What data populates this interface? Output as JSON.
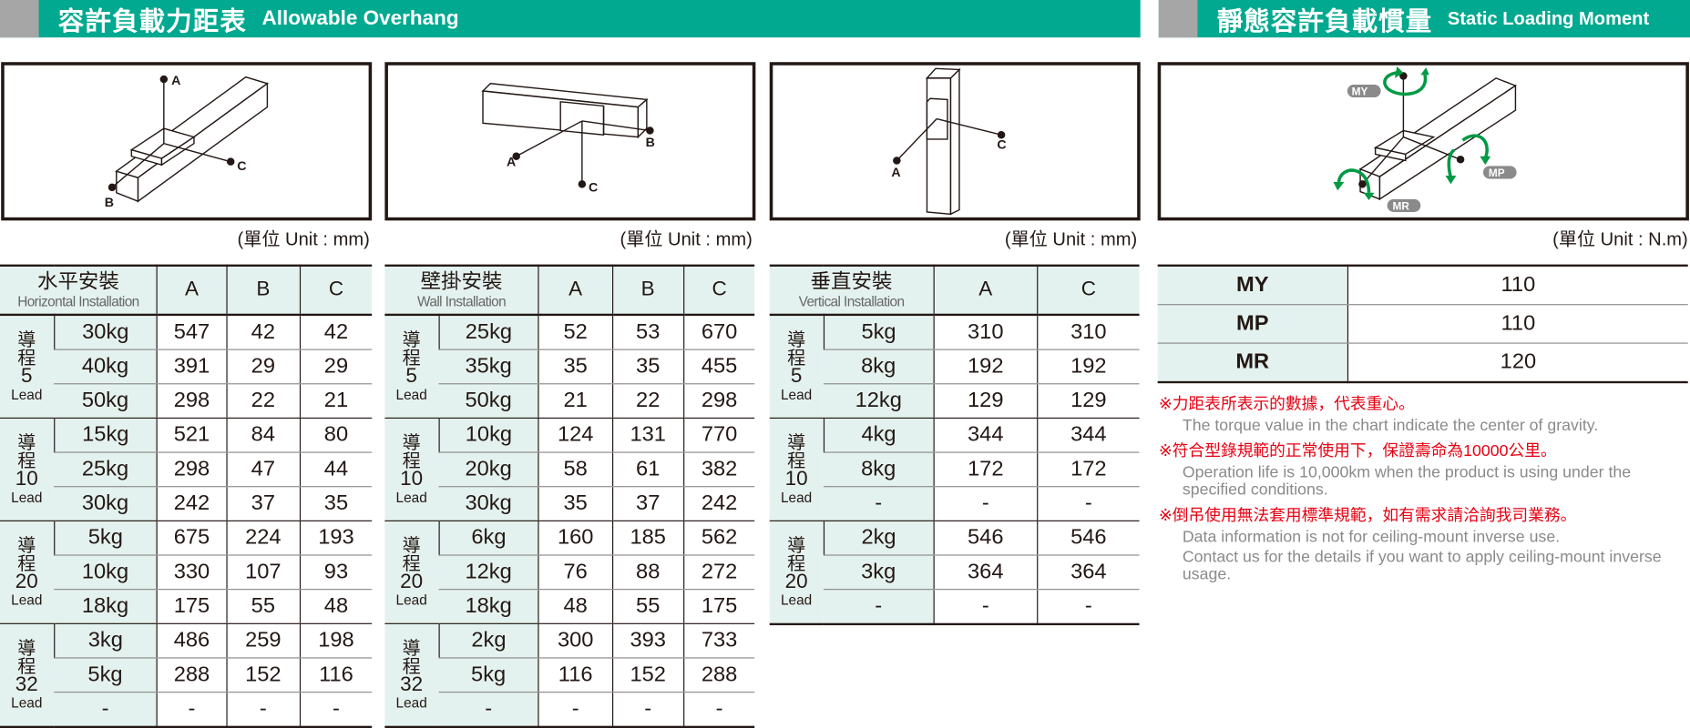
{
  "headers": {
    "overhang": {
      "cn": "容許負載力距表",
      "en": "Allowable Overhang"
    },
    "moment": {
      "cn": "靜態容許負載慣量",
      "en": "Static Loading Moment"
    }
  },
  "diagram_labels": {
    "a": "A",
    "b": "B",
    "c": "C",
    "my": "MY",
    "mp": "MP",
    "mr": "MR"
  },
  "units": {
    "mm": "(單位 Unit : mm)",
    "nm": "(單位 Unit : N.m)"
  },
  "colors": {
    "header": "#00a98f",
    "header_block": "#a6a6a6",
    "cell_tint": "#e4f2ef",
    "arrow": "#009944",
    "note_red": "#e60012",
    "note_gray": "#8a8a8a"
  },
  "tables": [
    {
      "id": "horizontal",
      "title_cn": "水平安裝",
      "title_en": "Horizontal Installation",
      "columns": [
        "A",
        "B",
        "C"
      ],
      "groups": [
        {
          "label": "導",
          "label2": "程",
          "lead": "5",
          "lead_en": "Lead",
          "rows": [
            [
              "30kg",
              "547",
              "42",
              "42"
            ],
            [
              "40kg",
              "391",
              "29",
              "29"
            ],
            [
              "50kg",
              "298",
              "22",
              "21"
            ]
          ]
        },
        {
          "label": "導",
          "label2": "程",
          "lead": "10",
          "lead_en": "Lead",
          "rows": [
            [
              "15kg",
              "521",
              "84",
              "80"
            ],
            [
              "25kg",
              "298",
              "47",
              "44"
            ],
            [
              "30kg",
              "242",
              "37",
              "35"
            ]
          ]
        },
        {
          "label": "導",
          "label2": "程",
          "lead": "20",
          "lead_en": "Lead",
          "rows": [
            [
              "5kg",
              "675",
              "224",
              "193"
            ],
            [
              "10kg",
              "330",
              "107",
              "93"
            ],
            [
              "18kg",
              "175",
              "55",
              "48"
            ]
          ]
        },
        {
          "label": "導",
          "label2": "程",
          "lead": "32",
          "lead_en": "Lead",
          "rows": [
            [
              "3kg",
              "486",
              "259",
              "198"
            ],
            [
              "5kg",
              "288",
              "152",
              "116"
            ],
            [
              "-",
              "-",
              "-",
              "-"
            ]
          ]
        }
      ]
    },
    {
      "id": "wall",
      "title_cn": "壁掛安裝",
      "title_en": "Wall Installation",
      "columns": [
        "A",
        "B",
        "C"
      ],
      "groups": [
        {
          "label": "導",
          "label2": "程",
          "lead": "5",
          "lead_en": "Lead",
          "rows": [
            [
              "25kg",
              "52",
              "53",
              "670"
            ],
            [
              "35kg",
              "35",
              "35",
              "455"
            ],
            [
              "50kg",
              "21",
              "22",
              "298"
            ]
          ]
        },
        {
          "label": "導",
          "label2": "程",
          "lead": "10",
          "lead_en": "Lead",
          "rows": [
            [
              "10kg",
              "124",
              "131",
              "770"
            ],
            [
              "20kg",
              "58",
              "61",
              "382"
            ],
            [
              "30kg",
              "35",
              "37",
              "242"
            ]
          ]
        },
        {
          "label": "導",
          "label2": "程",
          "lead": "20",
          "lead_en": "Lead",
          "rows": [
            [
              "6kg",
              "160",
              "185",
              "562"
            ],
            [
              "12kg",
              "76",
              "88",
              "272"
            ],
            [
              "18kg",
              "48",
              "55",
              "175"
            ]
          ]
        },
        {
          "label": "導",
          "label2": "程",
          "lead": "32",
          "lead_en": "Lead",
          "rows": [
            [
              "2kg",
              "300",
              "393",
              "733"
            ],
            [
              "5kg",
              "116",
              "152",
              "288"
            ],
            [
              "-",
              "-",
              "-",
              "-"
            ]
          ]
        }
      ]
    },
    {
      "id": "vertical",
      "title_cn": "垂直安裝",
      "title_en": "Vertical Installation",
      "columns": [
        "A",
        "C"
      ],
      "groups": [
        {
          "label": "導",
          "label2": "程",
          "lead": "5",
          "lead_en": "Lead",
          "rows": [
            [
              "5kg",
              "310",
              "310"
            ],
            [
              "8kg",
              "192",
              "192"
            ],
            [
              "12kg",
              "129",
              "129"
            ]
          ]
        },
        {
          "label": "導",
          "label2": "程",
          "lead": "10",
          "lead_en": "Lead",
          "rows": [
            [
              "4kg",
              "344",
              "344"
            ],
            [
              "8kg",
              "172",
              "172"
            ],
            [
              "-",
              "-",
              "-"
            ]
          ]
        },
        {
          "label": "導",
          "label2": "程",
          "lead": "20",
          "lead_en": "Lead",
          "rows": [
            [
              "2kg",
              "546",
              "546"
            ],
            [
              "3kg",
              "364",
              "364"
            ],
            [
              "-",
              "-",
              "-"
            ]
          ]
        }
      ]
    }
  ],
  "moments": [
    {
      "key": "MY",
      "value": "110"
    },
    {
      "key": "MP",
      "value": "110"
    },
    {
      "key": "MR",
      "value": "120"
    }
  ],
  "notes": [
    {
      "cn": "※力距表所表示的數據，代表重心。",
      "en": [
        "The torque value in the chart indicate the center of gravity."
      ]
    },
    {
      "cn": "※符合型錄規範的正常使用下，保證壽命為10000公里。",
      "en": [
        "Operation life is 10,000km when the product is using under the specified conditions."
      ]
    },
    {
      "cn": "※倒吊使用無法套用標準規範，如有需求請洽詢我司業務。",
      "en": [
        "Data information is not for ceiling-mount inverse use.",
        "Contact us for the details if you want to apply ceiling-mount inverse usage."
      ]
    }
  ]
}
